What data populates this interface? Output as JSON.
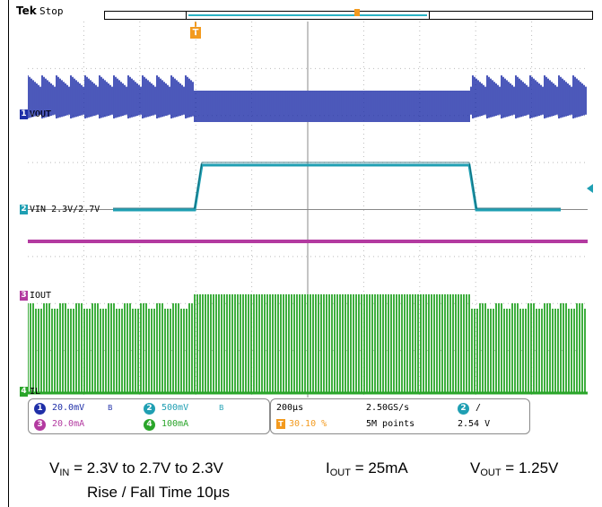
{
  "scope": {
    "brand": "Tek",
    "run_state": "Stop",
    "trigger_marker_label": "T"
  },
  "channels": [
    {
      "number": "1",
      "label": "VOUT",
      "color": "#1f2fa8"
    },
    {
      "number": "2",
      "label": "VIN 2.3V/2.7V",
      "color": "#1f9fb3"
    },
    {
      "number": "3",
      "label": "IOUT",
      "color": "#b33aa0"
    },
    {
      "number": "4",
      "label": "IL",
      "color": "#2aa52a"
    }
  ],
  "settings": {
    "ch1_scale": "20.0mV",
    "ch2_scale": "500mV",
    "ch3_scale": "20.0mA",
    "ch4_scale": "100mA",
    "bw_mark": "B",
    "timebase": "200μs",
    "trigger_position": "30.10 %",
    "sample_rate": "2.50GS/s",
    "record_length": "5M points",
    "trigger_channel": "2",
    "trigger_slope": "/",
    "trigger_level": "2.54 V"
  },
  "caption": {
    "vin_symbol": "V",
    "vin_sub": "IN",
    "vin_text": " = 2.3V to 2.7V to 2.3V",
    "iout_symbol": "I",
    "iout_sub": "OUT",
    "iout_text": " = 25mA",
    "vout_symbol": "V",
    "vout_sub": "OUT",
    "vout_text": " = 1.25V",
    "rise_fall": "Rise / Fall Time 10μs"
  }
}
